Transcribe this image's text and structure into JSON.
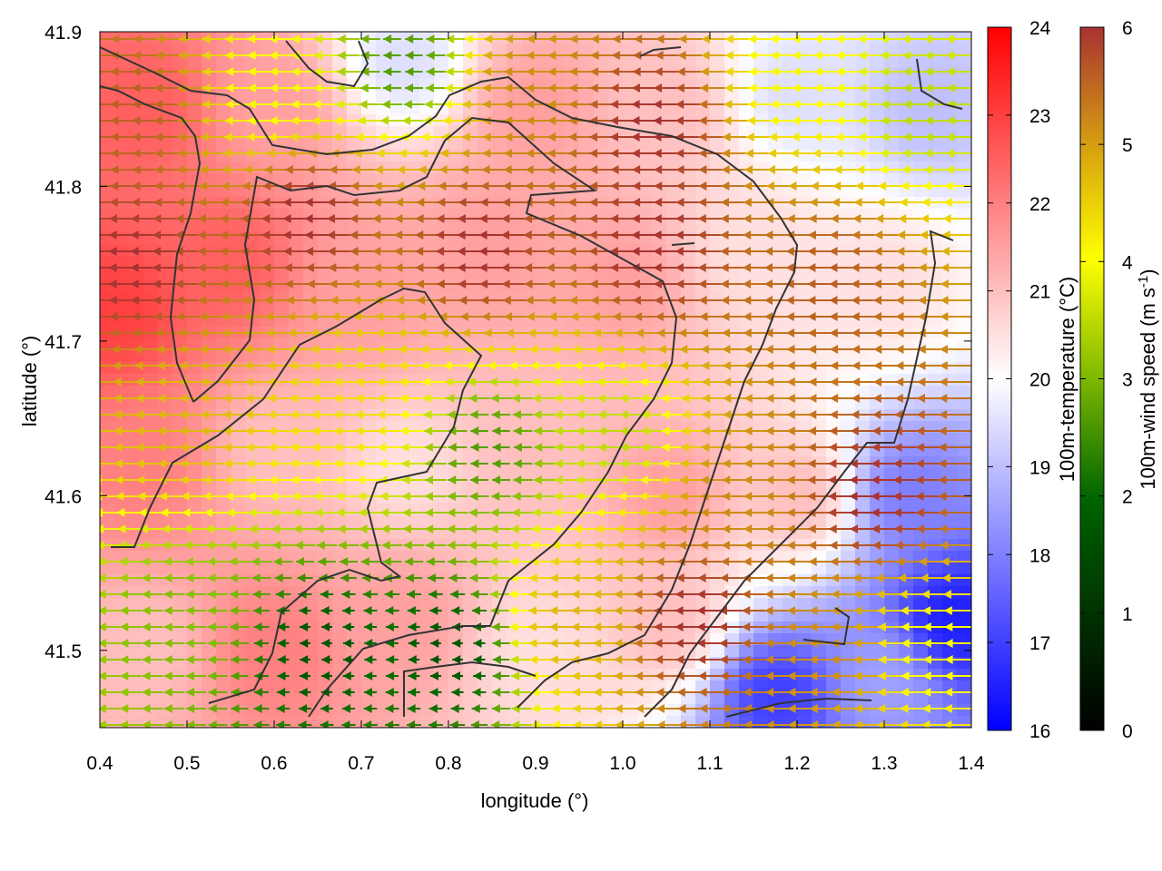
{
  "chart_data": {
    "type": "heatmap",
    "xlabel": "longitude (°)",
    "ylabel": "latitude (°)",
    "xlim": [
      0.4,
      1.4
    ],
    "ylim": [
      41.45,
      41.9
    ],
    "xticks": [
      "0.4",
      "0.5",
      "0.6",
      "0.7",
      "0.8",
      "0.9",
      "1.0",
      "1.1",
      "1.2",
      "1.3",
      "1.4"
    ],
    "yticks": [
      "41.5",
      "41.6",
      "41.7",
      "41.8",
      "41.9"
    ],
    "grid": false,
    "colorbars": [
      {
        "label_prefix": "100m-temperature (",
        "label_unit": "°C",
        "label_suffix": ")",
        "range": [
          16,
          24
        ],
        "ticks": [
          "16",
          "17",
          "18",
          "19",
          "20",
          "21",
          "22",
          "23",
          "24"
        ],
        "colors": [
          "#0000ff",
          "#ffffff",
          "#ff0000"
        ]
      },
      {
        "label_prefix": "100m-wind speed (m s",
        "label_sup": "-1",
        "label_suffix": ")",
        "range": [
          0,
          6
        ],
        "ticks": [
          "0",
          "1",
          "2",
          "3",
          "4",
          "5",
          "6"
        ],
        "colors": [
          "#000000",
          "#006400",
          "#7cb800",
          "#ffff00",
          "#d6a010",
          "#a83232"
        ]
      }
    ],
    "temperature_field": [
      {
        "lon": 0.45,
        "lat": 41.85,
        "t": 22.5
      },
      {
        "lon": 0.6,
        "lat": 41.85,
        "t": 21.5
      },
      {
        "lon": 0.75,
        "lat": 41.88,
        "t": 19.5
      },
      {
        "lon": 0.9,
        "lat": 41.85,
        "t": 21.5
      },
      {
        "lon": 1.05,
        "lat": 41.85,
        "t": 21.0
      },
      {
        "lon": 1.2,
        "lat": 41.86,
        "t": 19.5
      },
      {
        "lon": 1.35,
        "lat": 41.85,
        "t": 19.0
      },
      {
        "lon": 0.42,
        "lat": 41.72,
        "t": 23.0
      },
      {
        "lon": 0.55,
        "lat": 41.75,
        "t": 22.5
      },
      {
        "lon": 0.7,
        "lat": 41.73,
        "t": 21.5
      },
      {
        "lon": 0.85,
        "lat": 41.76,
        "t": 21.5
      },
      {
        "lon": 1.0,
        "lat": 41.74,
        "t": 21.5
      },
      {
        "lon": 1.15,
        "lat": 41.76,
        "t": 20.5
      },
      {
        "lon": 1.3,
        "lat": 41.74,
        "t": 20.5
      },
      {
        "lon": 0.45,
        "lat": 41.62,
        "t": 22.0
      },
      {
        "lon": 0.6,
        "lat": 41.63,
        "t": 21.0
      },
      {
        "lon": 0.75,
        "lat": 41.62,
        "t": 20.5
      },
      {
        "lon": 0.9,
        "lat": 41.63,
        "t": 21.0
      },
      {
        "lon": 1.05,
        "lat": 41.6,
        "t": 21.5
      },
      {
        "lon": 1.2,
        "lat": 41.6,
        "t": 21.0
      },
      {
        "lon": 1.33,
        "lat": 41.6,
        "t": 18.0
      },
      {
        "lon": 1.38,
        "lat": 41.52,
        "t": 16.5
      },
      {
        "lon": 0.45,
        "lat": 41.5,
        "t": 21.0
      },
      {
        "lon": 0.6,
        "lat": 41.5,
        "t": 22.0
      },
      {
        "lon": 0.75,
        "lat": 41.52,
        "t": 21.5
      },
      {
        "lon": 0.9,
        "lat": 41.5,
        "t": 20.5
      },
      {
        "lon": 1.05,
        "lat": 41.52,
        "t": 21.0
      },
      {
        "lon": 1.18,
        "lat": 41.47,
        "t": 17.0
      },
      {
        "lon": 1.3,
        "lat": 41.48,
        "t": 18.5
      }
    ],
    "wind_field": [
      {
        "lon": 0.45,
        "lat": 41.85,
        "speed": 5.5
      },
      {
        "lon": 0.6,
        "lat": 41.86,
        "speed": 3.5
      },
      {
        "lon": 0.75,
        "lat": 41.88,
        "speed": 2.0
      },
      {
        "lon": 0.9,
        "lat": 41.86,
        "speed": 5.0
      },
      {
        "lon": 1.05,
        "lat": 41.84,
        "speed": 6.0
      },
      {
        "lon": 1.2,
        "lat": 41.87,
        "speed": 3.5
      },
      {
        "lon": 1.35,
        "lat": 41.85,
        "speed": 3.0
      },
      {
        "lon": 0.45,
        "lat": 41.75,
        "speed": 6.0
      },
      {
        "lon": 0.65,
        "lat": 41.78,
        "speed": 6.0
      },
      {
        "lon": 0.85,
        "lat": 41.76,
        "speed": 6.0
      },
      {
        "lon": 1.05,
        "lat": 41.76,
        "speed": 6.0
      },
      {
        "lon": 1.25,
        "lat": 41.74,
        "speed": 5.5
      },
      {
        "lon": 0.5,
        "lat": 41.65,
        "speed": 4.5
      },
      {
        "lon": 0.7,
        "lat": 41.66,
        "speed": 4.0
      },
      {
        "lon": 0.85,
        "lat": 41.63,
        "speed": 2.0
      },
      {
        "lon": 1.0,
        "lat": 41.64,
        "speed": 3.0
      },
      {
        "lon": 1.15,
        "lat": 41.6,
        "speed": 5.0
      },
      {
        "lon": 1.3,
        "lat": 41.6,
        "speed": 6.0
      },
      {
        "lon": 0.5,
        "lat": 41.52,
        "speed": 2.5
      },
      {
        "lon": 0.65,
        "lat": 41.5,
        "speed": 1.0
      },
      {
        "lon": 0.8,
        "lat": 41.5,
        "speed": 1.0
      },
      {
        "lon": 0.95,
        "lat": 41.52,
        "speed": 4.5
      },
      {
        "lon": 1.1,
        "lat": 41.52,
        "speed": 6.0
      },
      {
        "lon": 1.25,
        "lat": 41.5,
        "speed": 5.0
      },
      {
        "lon": 1.35,
        "lat": 41.5,
        "speed": 3.5
      }
    ]
  }
}
